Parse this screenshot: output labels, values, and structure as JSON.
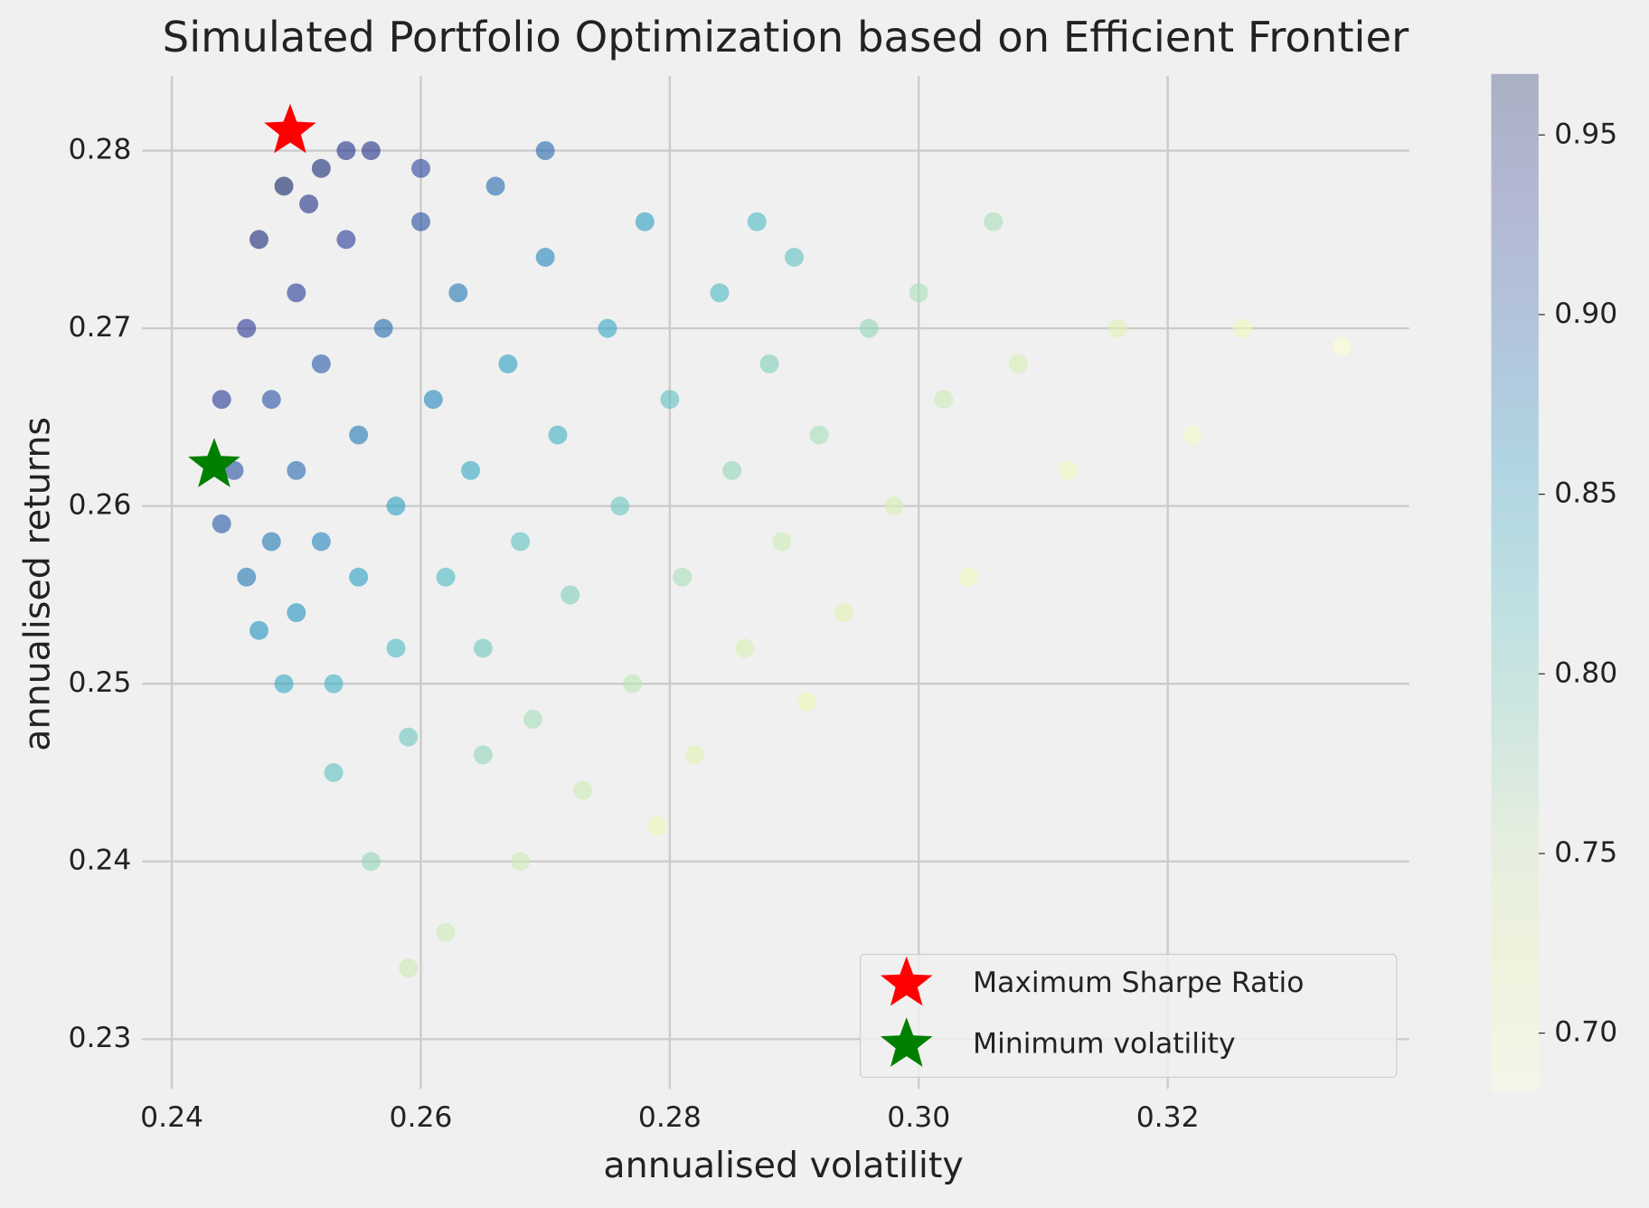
{
  "chart_data": {
    "type": "scatter",
    "title": "Simulated Portfolio Optimization based on Efficient Frontier",
    "x_label": "annualised volatility",
    "y_label": "annualised returns",
    "xlim": [
      0.2376,
      0.3394
    ],
    "ylim": [
      0.2272,
      0.2842
    ],
    "xticks": [
      0.24,
      0.26,
      0.28,
      {
        "value": 0.3,
        "label": "0.30"
      },
      0.32
    ],
    "yticks": [
      0.23,
      0.24,
      0.25,
      0.26,
      0.27,
      0.28
    ],
    "grid": true,
    "legend": "lower right",
    "colormap": [
      "#ffffd9",
      "#edf8b1",
      "#c7e9b4",
      "#7fcdbb",
      "#41b6c4",
      "#1d91c0",
      "#225ea8",
      "#253494",
      "#081d58"
    ],
    "clim": [
      0.6836,
      0.967
    ],
    "cticks": [
      {
        "value": 0.7,
        "label": "0.70"
      },
      0.75,
      {
        "value": 0.8,
        "label": "0.80"
      },
      0.85,
      {
        "value": 0.9,
        "label": "0.90"
      },
      0.95
    ],
    "series": [
      {
        "x": [
          0.245,
          0.246,
          0.246,
          0.247,
          0.248,
          0.248,
          0.249,
          0.25,
          0.25,
          0.25,
          0.252,
          0.252,
          0.252,
          0.253,
          0.254,
          0.255,
          0.255,
          0.256,
          0.257,
          0.258,
          0.258,
          0.259,
          0.26,
          0.261,
          0.262,
          0.263,
          0.264,
          0.265,
          0.266,
          0.267,
          0.268,
          0.269,
          0.27,
          0.271,
          0.272,
          0.273,
          0.275,
          0.276,
          0.277,
          0.278,
          0.28,
          0.281,
          0.282,
          0.284,
          0.285,
          0.286,
          0.288,
          0.289,
          0.29,
          0.292,
          0.294,
          0.296,
          0.298,
          0.3,
          0.302,
          0.304,
          0.306,
          0.308,
          0.312,
          0.316,
          0.322,
          0.326,
          0.334,
          0.256,
          0.262,
          0.259,
          0.268,
          0.253,
          0.249,
          0.247,
          0.244,
          0.244,
          0.251,
          0.254,
          0.26,
          0.27,
          0.279,
          0.291,
          0.265,
          0.287
        ],
        "y": [
          0.262,
          0.27,
          0.256,
          0.275,
          0.266,
          0.258,
          0.278,
          0.272,
          0.262,
          0.254,
          0.279,
          0.268,
          0.258,
          0.25,
          0.275,
          0.264,
          0.256,
          0.28,
          0.27,
          0.26,
          0.252,
          0.247,
          0.276,
          0.266,
          0.256,
          0.272,
          0.262,
          0.252,
          0.278,
          0.268,
          0.258,
          0.248,
          0.274,
          0.264,
          0.255,
          0.244,
          0.27,
          0.26,
          0.25,
          0.276,
          0.266,
          0.256,
          0.246,
          0.272,
          0.262,
          0.252,
          0.268,
          0.258,
          0.274,
          0.264,
          0.254,
          0.27,
          0.26,
          0.272,
          0.266,
          0.256,
          0.276,
          0.268,
          0.262,
          0.27,
          0.264,
          0.27,
          0.269,
          0.24,
          0.236,
          0.234,
          0.24,
          0.245,
          0.25,
          0.253,
          0.266,
          0.259,
          0.277,
          0.28,
          0.279,
          0.28,
          0.242,
          0.249,
          0.246,
          0.276
        ],
        "c": [
          0.91,
          0.93,
          0.88,
          0.95,
          0.91,
          0.88,
          0.96,
          0.93,
          0.89,
          0.86,
          0.95,
          0.9,
          0.87,
          0.83,
          0.93,
          0.88,
          0.85,
          0.94,
          0.89,
          0.85,
          0.82,
          0.8,
          0.91,
          0.87,
          0.82,
          0.88,
          0.84,
          0.8,
          0.89,
          0.85,
          0.81,
          0.77,
          0.87,
          0.83,
          0.79,
          0.75,
          0.84,
          0.8,
          0.76,
          0.85,
          0.81,
          0.77,
          0.73,
          0.82,
          0.78,
          0.74,
          0.79,
          0.75,
          0.81,
          0.77,
          0.73,
          0.78,
          0.74,
          0.77,
          0.75,
          0.71,
          0.77,
          0.74,
          0.71,
          0.73,
          0.7,
          0.71,
          0.69,
          0.78,
          0.75,
          0.75,
          0.75,
          0.81,
          0.84,
          0.86,
          0.93,
          0.9,
          0.94,
          0.94,
          0.92,
          0.89,
          0.72,
          0.72,
          0.78,
          0.82
        ]
      },
      {
        "name": "Maximum Sharpe Ratio",
        "color": "#ff0000",
        "marker": "star",
        "x": [
          0.2495
        ],
        "y": [
          0.2811
        ]
      },
      {
        "name": "Minimum volatility",
        "color": "#008000",
        "marker": "star",
        "x": [
          0.2434
        ],
        "y": [
          0.2623
        ]
      }
    ]
  }
}
